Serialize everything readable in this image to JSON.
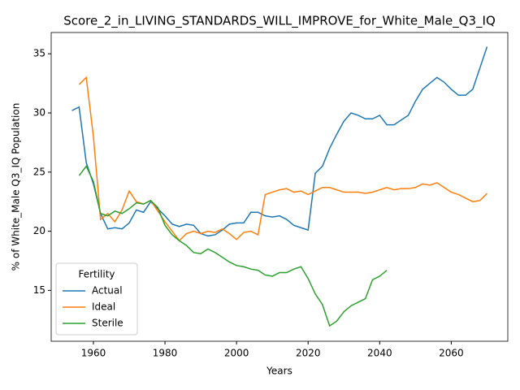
{
  "chart_data": {
    "type": "line",
    "title": "Score_2_in_LIVING_STANDARDS_WILL_IMPROVE_for_White_Male_Q3_IQ",
    "xlabel": "Years",
    "ylabel": "% of White_Male Q3_IQ Population",
    "x": [
      1954,
      1956,
      1958,
      1960,
      1962,
      1964,
      1966,
      1968,
      1970,
      1972,
      1974,
      1976,
      1978,
      1980,
      1982,
      1984,
      1986,
      1988,
      1990,
      1992,
      1994,
      1996,
      1998,
      2000,
      2002,
      2004,
      2006,
      2008,
      2010,
      2012,
      2014,
      2016,
      2018,
      2020,
      2022,
      2024,
      2026,
      2028,
      2030,
      2032,
      2034,
      2036,
      2038,
      2040,
      2042,
      2044,
      2046,
      2048,
      2050,
      2052,
      2054,
      2056,
      2058,
      2060,
      2062,
      2064,
      2066,
      2068,
      2070
    ],
    "series": [
      {
        "name": "Actual",
        "color": "#1f77b4",
        "values": [
          30.2,
          30.5,
          25.8,
          24.0,
          21.5,
          20.2,
          20.3,
          20.2,
          20.7,
          21.8,
          21.6,
          22.5,
          21.9,
          21.3,
          20.6,
          20.4,
          20.6,
          20.5,
          19.8,
          19.6,
          19.7,
          20.1,
          20.6,
          20.7,
          20.7,
          21.6,
          21.6,
          21.3,
          21.2,
          21.3,
          21.0,
          20.5,
          20.3,
          20.1,
          24.9,
          25.5,
          27.0,
          28.2,
          29.3,
          30.0,
          29.8,
          29.5,
          29.5,
          29.8,
          29.0,
          29.0,
          29.4,
          29.8,
          31.0,
          32.0,
          32.5,
          33.0,
          32.6,
          32.0,
          31.5,
          31.5,
          32.0,
          33.8,
          35.6
        ]
      },
      {
        "name": "Ideal",
        "color": "#ff7f0e",
        "values": [
          null,
          32.4,
          33.0,
          28.0,
          21.0,
          21.5,
          20.8,
          21.8,
          23.4,
          22.5,
          22.3,
          22.6,
          21.7,
          20.8,
          20.0,
          19.2,
          19.8,
          20.0,
          19.8,
          20.0,
          19.9,
          20.2,
          19.8,
          19.3,
          19.9,
          20.0,
          19.7,
          23.1,
          23.3,
          23.5,
          23.6,
          23.3,
          23.4,
          23.1,
          23.4,
          23.7,
          23.7,
          23.5,
          23.3,
          23.3,
          23.3,
          23.2,
          23.3,
          23.5,
          23.7,
          23.5,
          23.6,
          23.6,
          23.7,
          24.0,
          23.9,
          24.1,
          23.7,
          23.3,
          23.1,
          22.8,
          22.5,
          22.6,
          23.2
        ]
      },
      {
        "name": "Sterile",
        "color": "#2ca02c",
        "values": [
          null,
          24.7,
          25.5,
          24.2,
          21.5,
          21.3,
          21.7,
          21.5,
          21.9,
          22.4,
          22.3,
          22.6,
          22.0,
          20.5,
          19.7,
          19.2,
          18.8,
          18.2,
          18.1,
          18.5,
          18.2,
          17.8,
          17.4,
          17.1,
          17.0,
          16.8,
          16.7,
          16.3,
          16.2,
          16.5,
          16.5,
          16.8,
          17.0,
          16.0,
          14.7,
          13.8,
          12.0,
          12.4,
          13.2,
          13.7,
          14.0,
          14.3,
          15.9,
          16.2,
          16.7,
          null,
          null,
          null,
          null,
          null,
          null,
          null,
          null,
          null,
          null,
          null,
          null,
          null,
          null
        ]
      }
    ],
    "xlim": [
      1948.2,
      2075.8
    ],
    "ylim": [
      10.7,
      36.8
    ],
    "xticks": [
      1960,
      1980,
      2000,
      2020,
      2040,
      2060
    ],
    "yticks": [
      15,
      20,
      25,
      30,
      35
    ],
    "legend": {
      "title": "Fertility",
      "loc": "lower left"
    }
  }
}
